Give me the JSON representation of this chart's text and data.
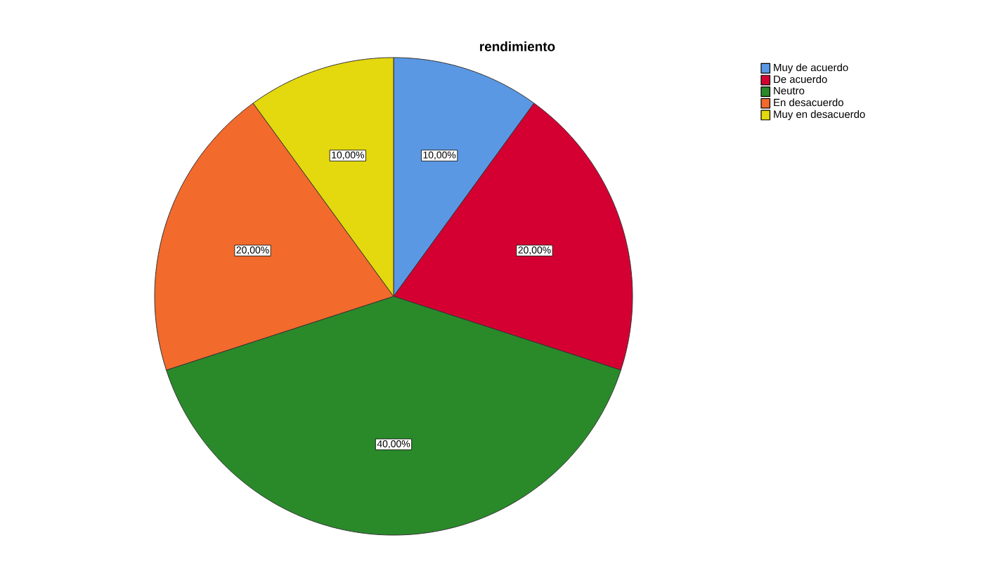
{
  "chart_data": {
    "type": "pie",
    "title": "rendimiento",
    "categories": [
      "Muy de acuerdo",
      "De acuerdo",
      "Neutro",
      "En desacuerdo",
      "Muy en desacuerdo"
    ],
    "values": [
      10,
      20,
      40,
      20,
      10
    ],
    "value_labels": [
      "10,00%",
      "20,00%",
      "40,00%",
      "20,00%",
      "10,00%"
    ],
    "colors": [
      "#5a98e4",
      "#d50032",
      "#2a8a2a",
      "#f26a2c",
      "#e4d80e"
    ],
    "legend": "top right"
  }
}
